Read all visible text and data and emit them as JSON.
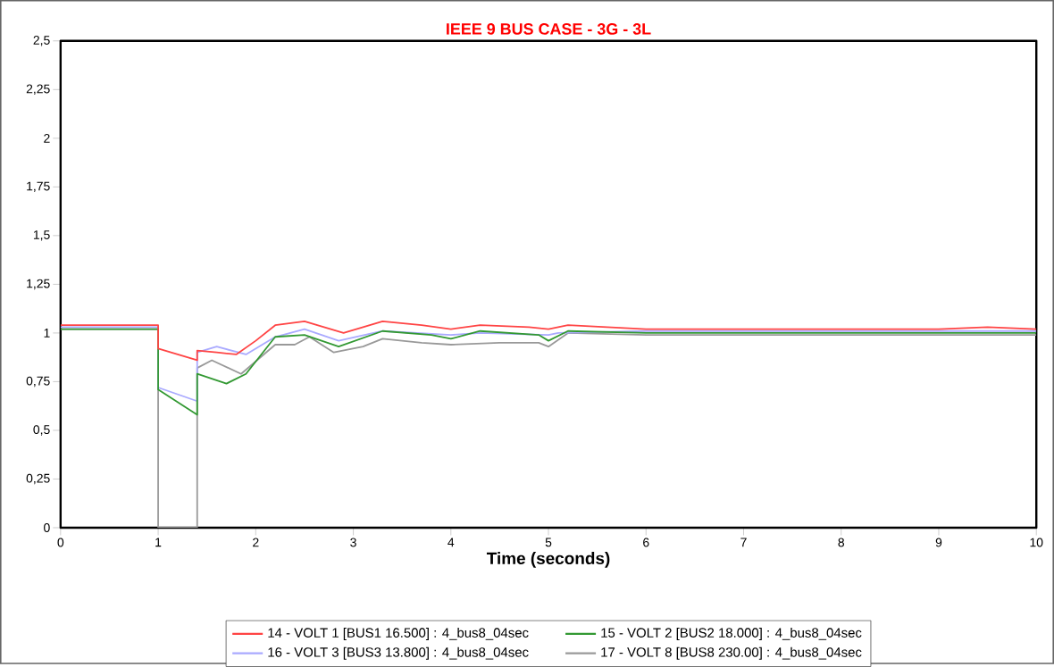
{
  "chart_data": {
    "type": "line",
    "title": "IEEE 9 BUS CASE - 3G - 3L",
    "xlabel": "Time (seconds)",
    "xlim": [
      0,
      10
    ],
    "xticks": [
      0,
      1,
      2,
      3,
      4,
      5,
      6,
      7,
      8,
      9,
      10
    ],
    "ylim": [
      0,
      2.5
    ],
    "yticks": [
      0,
      {
        "value": 0.25,
        "label": "0,25"
      },
      {
        "value": 0.5,
        "label": "0,5"
      },
      {
        "value": 0.75,
        "label": "0,75"
      },
      1,
      {
        "value": 1.25,
        "label": "1,25"
      },
      {
        "value": 1.5,
        "label": "1,5"
      },
      {
        "value": 1.75,
        "label": "1,75"
      },
      2,
      {
        "value": 2.25,
        "label": "2,25"
      },
      {
        "value": 2.5,
        "label": "2,5"
      }
    ],
    "grid": false,
    "legend": "bottom",
    "marker": "none",
    "line_style": "solid",
    "series": [
      {
        "name": "14 - VOLT 1 [BUS1 16.500] : 4_bus8_04sec",
        "color": "#ff4444",
        "x": [
          0,
          1,
          1,
          1.4,
          1.4,
          1.6,
          1.8,
          2.0,
          2.2,
          2.5,
          2.9,
          3.3,
          3.7,
          4.0,
          4.3,
          4.8,
          5.0,
          5.2,
          5.6,
          6,
          7,
          8,
          9,
          9.5,
          10
        ],
        "values": [
          1.04,
          1.04,
          0.92,
          0.86,
          0.91,
          0.9,
          0.89,
          0.96,
          1.04,
          1.06,
          1.0,
          1.06,
          1.04,
          1.02,
          1.04,
          1.03,
          1.02,
          1.04,
          1.03,
          1.02,
          1.02,
          1.02,
          1.02,
          1.03,
          1.02
        ]
      },
      {
        "name": "15 - VOLT 2 [BUS2 18.000] : 4_bus8_04sec",
        "color": "#339933",
        "x": [
          0,
          1,
          1,
          1.4,
          1.4,
          1.7,
          1.9,
          2.2,
          2.5,
          2.85,
          3.3,
          3.8,
          4.0,
          4.3,
          4.9,
          5.0,
          5.2,
          6,
          7,
          8,
          9,
          10
        ],
        "values": [
          1.02,
          1.02,
          0.71,
          0.58,
          0.79,
          0.74,
          0.79,
          0.98,
          0.99,
          0.93,
          1.01,
          0.99,
          0.97,
          1.01,
          0.99,
          0.96,
          1.01,
          1.0,
          1.0,
          1.0,
          1.0,
          1.0
        ]
      },
      {
        "name": "16 - VOLT 3 [BUS3 13.800] : 4_bus8_04sec",
        "color": "#aaaaff",
        "x": [
          0,
          1,
          1,
          1.4,
          1.4,
          1.6,
          1.9,
          2.2,
          2.5,
          2.85,
          3.3,
          4.0,
          4.3,
          5.0,
          5.1,
          6,
          7,
          8,
          9,
          10
        ],
        "values": [
          1.03,
          1.03,
          0.72,
          0.65,
          0.9,
          0.93,
          0.89,
          0.98,
          1.02,
          0.96,
          1.01,
          0.99,
          1.0,
          0.99,
          1.0,
          1.01,
          1.01,
          1.01,
          1.01,
          1.01
        ]
      },
      {
        "name": "17 - VOLT 8 [BUS8 230.00] : 4_bus8_04sec",
        "color": "#999999",
        "x": [
          0,
          1,
          1,
          1.4,
          1.4,
          1.55,
          1.85,
          2.2,
          2.4,
          2.55,
          2.8,
          3.1,
          3.3,
          3.7,
          4.0,
          4.5,
          4.9,
          5.0,
          5.2,
          6,
          7,
          8,
          9,
          10
        ],
        "values": [
          1.02,
          1.02,
          0,
          0,
          0.82,
          0.86,
          0.79,
          0.94,
          0.94,
          0.98,
          0.9,
          0.93,
          0.97,
          0.95,
          0.94,
          0.95,
          0.95,
          0.93,
          1.0,
          0.99,
          0.99,
          0.99,
          0.99,
          0.99
        ]
      }
    ]
  }
}
